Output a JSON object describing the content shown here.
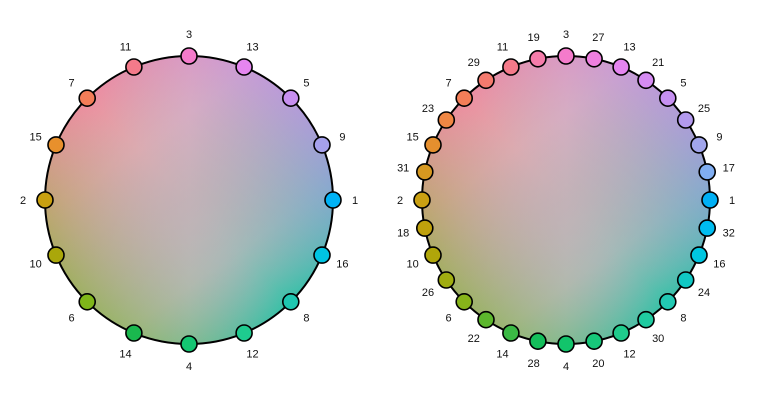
{
  "wheels": [
    {
      "labels": [
        "1",
        "16",
        "8",
        "12",
        "4",
        "14",
        "6",
        "10",
        "2",
        "15",
        "7",
        "11",
        "3",
        "13",
        "5",
        "9"
      ],
      "colors": [
        "#00b2f5",
        "#00c4e2",
        "#1ec7b0",
        "#1ecb8f",
        "#14c572",
        "#1ab84e",
        "#7fb61a",
        "#aaa70a",
        "#c9a010",
        "#e8902c",
        "#f37d58",
        "#f47a8a",
        "#f47bcb",
        "#e585f0",
        "#c78ff0",
        "#a6a1ec"
      ]
    },
    {
      "labels": [
        "1",
        "32",
        "16",
        "24",
        "8",
        "30",
        "12",
        "20",
        "4",
        "28",
        "14",
        "22",
        "6",
        "26",
        "10",
        "18",
        "2",
        "31",
        "15",
        "23",
        "7",
        "29",
        "11",
        "19",
        "3",
        "27",
        "13",
        "21",
        "5",
        "25",
        "9",
        "17"
      ],
      "colors": [
        "#00b0f5",
        "#00bdf0",
        "#00c6e0",
        "#11c8c4",
        "#22c9b3",
        "#20caa0",
        "#1fcb8c",
        "#17c87a",
        "#12c46b",
        "#14bf5b",
        "#3bb945",
        "#5cb72d",
        "#87b41a",
        "#a0ad10",
        "#b0a60a",
        "#bfa10c",
        "#caa012",
        "#d69820",
        "#e58f2e",
        "#ef8744",
        "#f37e58",
        "#f47a6e",
        "#f47a8a",
        "#f57caa",
        "#f47bcb",
        "#ef7fe0",
        "#e585f0",
        "#d58bf2",
        "#c690f1",
        "#b39aee",
        "#a1a5ec",
        "#80aef2"
      ]
    }
  ]
}
